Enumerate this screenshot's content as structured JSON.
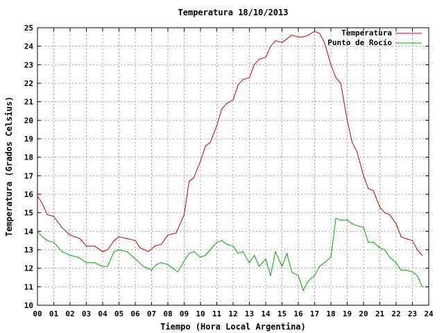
{
  "chart_data": {
    "type": "line",
    "title": "Temperatura 18/10/2013",
    "xlabel": "Tiempo (Hora Local Argentina)",
    "ylabel": "Temperatura (Grados Celsius)",
    "xlim": [
      0,
      24
    ],
    "ylim": [
      10,
      25
    ],
    "x_ticks": [
      "00",
      "01",
      "02",
      "03",
      "04",
      "05",
      "06",
      "07",
      "08",
      "09",
      "10",
      "11",
      "12",
      "13",
      "14",
      "15",
      "16",
      "17",
      "18",
      "19",
      "20",
      "21",
      "22",
      "23",
      "24"
    ],
    "y_ticks": [
      "10",
      "11",
      "12",
      "13",
      "14",
      "15",
      "16",
      "17",
      "18",
      "19",
      "20",
      "21",
      "22",
      "23",
      "24",
      "25"
    ],
    "grid": true,
    "legend_position": "top-right",
    "series": [
      {
        "name": "Temperatura",
        "color": "#cc0000",
        "x": [
          0,
          0.3,
          0.6,
          1.0,
          1.5,
          2.0,
          2.6,
          3.0,
          3.5,
          4.0,
          4.3,
          4.7,
          5.0,
          5.5,
          6.0,
          6.3,
          6.8,
          7.2,
          7.6,
          8.0,
          8.5,
          9.0,
          9.3,
          9.6,
          10.0,
          10.3,
          10.6,
          11.0,
          11.3,
          11.6,
          12.0,
          12.3,
          12.6,
          13.0,
          13.3,
          13.6,
          14.0,
          14.3,
          14.6,
          15.0,
          15.3,
          15.6,
          16.0,
          16.3,
          16.6,
          17.0,
          17.3,
          17.6,
          18.0,
          18.3,
          18.6,
          19.0,
          19.3,
          19.6,
          20.0,
          20.3,
          20.6,
          21.0,
          21.3,
          21.6,
          22.0,
          22.3,
          22.6,
          23.0,
          23.3,
          23.6
        ],
        "y": [
          15.9,
          15.5,
          14.9,
          14.8,
          14.2,
          13.8,
          13.6,
          13.2,
          13.2,
          12.9,
          13.0,
          13.5,
          13.7,
          13.6,
          13.5,
          13.1,
          12.9,
          13.2,
          13.3,
          13.8,
          13.9,
          14.9,
          16.7,
          16.9,
          17.8,
          18.6,
          18.8,
          19.7,
          20.6,
          20.9,
          21.1,
          21.9,
          22.2,
          22.3,
          23.0,
          23.3,
          23.4,
          24.0,
          24.3,
          24.2,
          24.4,
          24.6,
          24.5,
          24.5,
          24.6,
          24.8,
          24.7,
          24.2,
          23.0,
          22.3,
          22.0,
          20.0,
          18.8,
          18.3,
          17.0,
          16.3,
          16.2,
          15.3,
          15.0,
          14.9,
          14.4,
          13.7,
          13.6,
          13.5,
          13.0,
          12.7
        ]
      },
      {
        "name": "Punto de Rocío",
        "color": "#00aa00",
        "x": [
          0,
          0.3,
          0.6,
          1.0,
          1.5,
          2.0,
          2.5,
          3.0,
          3.5,
          4.0,
          4.3,
          4.7,
          5.0,
          5.5,
          6.0,
          6.5,
          7.0,
          7.3,
          7.6,
          8.0,
          8.3,
          8.6,
          9.0,
          9.3,
          9.6,
          10.0,
          10.3,
          10.6,
          11.0,
          11.3,
          11.6,
          12.0,
          12.3,
          12.6,
          13.0,
          13.3,
          13.6,
          14.0,
          14.3,
          14.6,
          15.0,
          15.3,
          15.6,
          16.0,
          16.3,
          16.6,
          17.0,
          17.3,
          17.6,
          18.0,
          18.3,
          18.6,
          19.0,
          19.3,
          19.6,
          20.0,
          20.3,
          20.6,
          21.0,
          21.3,
          21.6,
          22.0,
          22.3,
          22.6,
          23.0,
          23.3,
          23.6
        ],
        "y": [
          14.0,
          13.7,
          13.5,
          13.4,
          12.9,
          12.7,
          12.6,
          12.3,
          12.3,
          12.1,
          12.1,
          12.9,
          13.0,
          12.9,
          12.5,
          12.1,
          11.9,
          12.2,
          12.3,
          12.2,
          12.0,
          11.8,
          12.4,
          12.8,
          12.9,
          12.6,
          12.7,
          13.0,
          13.4,
          13.5,
          13.3,
          13.2,
          12.8,
          12.9,
          12.3,
          12.7,
          12.1,
          12.5,
          11.6,
          12.9,
          12.1,
          12.8,
          11.8,
          11.6,
          10.8,
          11.3,
          11.6,
          12.1,
          12.3,
          12.6,
          14.7,
          14.6,
          14.6,
          14.4,
          14.3,
          14.2,
          13.4,
          13.4,
          13.1,
          13.0,
          12.6,
          12.3,
          11.9,
          11.9,
          11.8,
          11.6,
          11.0
        ]
      }
    ]
  }
}
